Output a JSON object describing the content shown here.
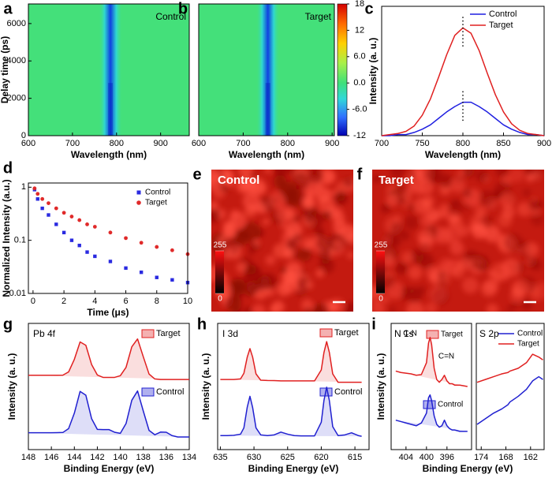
{
  "chart_data": [
    {
      "type": "heatmap",
      "panel_label": "a",
      "title": "Control",
      "xlabel": "Wavelength (nm)",
      "ylabel": "Delay time (ps)",
      "xlim": [
        600,
        965
      ],
      "xticks": [
        600,
        700,
        800,
        900
      ],
      "ylim": [
        0,
        7050
      ],
      "yticks": [
        0,
        2000,
        4000,
        6000
      ]
    },
    {
      "type": "heatmap",
      "panel_label": "b",
      "title": "Target",
      "xlabel": "Wavelength (nm)",
      "xlim": [
        600,
        905
      ],
      "xticks": [
        600,
        700,
        800,
        900
      ],
      "ylim": [
        0,
        7050
      ],
      "colorbar": {
        "lim": [
          -12,
          18
        ],
        "ticks": [
          18,
          12,
          {
            "value": 6,
            "label": "6.0"
          },
          {
            "value": 0,
            "label": "0.0"
          },
          {
            "value": -6,
            "label": "-6.0"
          },
          -12
        ]
      }
    },
    {
      "type": "line",
      "panel_label": "c",
      "xlabel": "Wavelength (nm)",
      "ylabel": "Intensity (a. u.)",
      "xlim": [
        700,
        900
      ],
      "xticks": [
        700,
        750,
        800,
        850,
        900
      ],
      "ylim": [
        0,
        1.2
      ],
      "x": [
        700,
        710,
        720,
        730,
        740,
        750,
        760,
        770,
        780,
        790,
        800,
        810,
        820,
        830,
        840,
        850,
        860,
        870,
        880,
        890,
        900
      ],
      "series": [
        {
          "name": "Control",
          "color": "#1f1fe0",
          "values": [
            0.0,
            0.0,
            0.01,
            0.01,
            0.03,
            0.06,
            0.1,
            0.16,
            0.22,
            0.27,
            0.31,
            0.31,
            0.27,
            0.22,
            0.16,
            0.1,
            0.06,
            0.03,
            0.01,
            0.01,
            0.0
          ]
        },
        {
          "name": "Target",
          "color": "#e02020",
          "values": [
            0.0,
            0.01,
            0.02,
            0.04,
            0.09,
            0.19,
            0.34,
            0.54,
            0.75,
            0.93,
            1.0,
            0.95,
            0.79,
            0.58,
            0.38,
            0.22,
            0.11,
            0.05,
            0.02,
            0.01,
            0.0
          ]
        }
      ]
    },
    {
      "type": "scatter",
      "panel_label": "d",
      "xlabel": "Time (μs)",
      "ylabel": "Normalized Intensity (a.u.)",
      "log_y": true,
      "xlim": [
        -0.3,
        10
      ],
      "xticks": [
        0,
        2,
        4,
        6,
        8,
        10
      ],
      "ylim": [
        0.01,
        1.2
      ],
      "yticks": [
        0.01,
        0.1,
        1
      ],
      "x": [
        0.1,
        0.3,
        0.6,
        1,
        1.5,
        2,
        2.5,
        3,
        3.5,
        4,
        5,
        6,
        7,
        8,
        9,
        10
      ],
      "series": [
        {
          "name": "Control",
          "color": "#2a2ae0",
          "marker": "square",
          "values": [
            0.9,
            0.6,
            0.4,
            0.3,
            0.2,
            0.14,
            0.1,
            0.08,
            0.06,
            0.05,
            0.04,
            0.03,
            0.025,
            0.02,
            0.018,
            0.016
          ]
        },
        {
          "name": "Target",
          "color": "#e02a2a",
          "marker": "circle",
          "values": [
            0.95,
            0.75,
            0.6,
            0.5,
            0.4,
            0.33,
            0.28,
            0.24,
            0.2,
            0.18,
            0.14,
            0.11,
            0.09,
            0.075,
            0.065,
            0.055
          ]
        }
      ]
    },
    {
      "type": "image",
      "panel_label": "e",
      "title": "Control",
      "colorbar": {
        "lim": [
          0,
          255
        ],
        "ticks": [
          255,
          0
        ]
      }
    },
    {
      "type": "image",
      "panel_label": "f",
      "title": "Target",
      "colorbar": {
        "lim": [
          0,
          255
        ],
        "ticks": [
          255,
          0
        ]
      }
    },
    {
      "type": "line",
      "panel_label": "g",
      "title": "Pb 4f",
      "xlabel": "Binding Energy (eV)",
      "ylabel": "Intensity (a. u.)",
      "xlim": [
        148,
        134
      ],
      "xticks": [
        148,
        146,
        144,
        142,
        140,
        138,
        136,
        134
      ],
      "ylim": [
        0,
        9
      ],
      "x": [
        148,
        147.5,
        147,
        146.5,
        146,
        145.5,
        145,
        144.5,
        144,
        143.5,
        143,
        142.5,
        142,
        141.5,
        141,
        140.5,
        140,
        139.5,
        139,
        138.5,
        138,
        137.5,
        137,
        136.5,
        136,
        135.5,
        135,
        134.5,
        134
      ],
      "series": [
        {
          "name": "Target",
          "color": "#e02020",
          "values": [
            5.3,
            5.3,
            5.3,
            5.3,
            5.3,
            5.3,
            5.31,
            5.54,
            6.44,
            7.68,
            7.44,
            6.07,
            5.32,
            5.15,
            5.15,
            5.15,
            5.27,
            5.87,
            7.33,
            7.89,
            6.62,
            5.39,
            5.04,
            5.0,
            5.0,
            5.0,
            5.0,
            5.0,
            5.0
          ]
        },
        {
          "name": "Control",
          "color": "#2020d0",
          "values": [
            1.2,
            1.2,
            1.2,
            1.2,
            1.2,
            1.21,
            1.22,
            1.5,
            2.6,
            4.15,
            3.88,
            2.21,
            1.44,
            1.43,
            1.43,
            1.24,
            1.16,
            1.86,
            3.52,
            4.18,
            2.75,
            1.37,
            1.06,
            1.25,
            1.24,
            1.0,
            0.9,
            0.9,
            0.9
          ]
        }
      ]
    },
    {
      "type": "line",
      "panel_label": "h",
      "title": "I 3d",
      "xlabel": "Binding Energy (eV)",
      "ylabel": "Intensity (a. u.)",
      "xlim": [
        635.4,
        612.9
      ],
      "xticks": [
        635,
        630,
        625,
        620,
        615
      ],
      "ylim": [
        0,
        9
      ],
      "x": [
        635,
        634,
        633,
        632,
        631.5,
        631,
        630.6,
        630.2,
        629.7,
        629,
        628,
        627,
        626,
        625,
        624,
        623,
        622,
        621,
        620,
        619.6,
        619.2,
        618.8,
        618.3,
        617.5,
        616.5,
        615.5,
        614.5,
        614
      ],
      "series": [
        {
          "name": "Target",
          "color": "#e02020",
          "values": [
            5.0,
            5.0,
            5.0,
            5.04,
            5.44,
            6.6,
            7.2,
            6.6,
            5.4,
            4.95,
            4.93,
            4.92,
            4.9,
            4.9,
            4.9,
            4.9,
            4.9,
            4.9,
            5.68,
            6.93,
            7.7,
            6.93,
            5.4,
            4.8,
            4.8,
            4.8,
            4.8,
            4.8
          ]
        },
        {
          "name": "Control",
          "color": "#2020d0",
          "values": [
            1.0,
            1.0,
            1.02,
            1.1,
            1.55,
            3.03,
            3.8,
            3.0,
            1.55,
            1.05,
            1.0,
            1.05,
            1.25,
            1.1,
            1.0,
            0.98,
            0.98,
            0.98,
            1.95,
            3.51,
            4.45,
            3.5,
            1.64,
            1.0,
            1.05,
            1.2,
            1.0,
            0.95
          ]
        }
      ]
    },
    {
      "type": "line",
      "panel_label": "i",
      "title": "N 1s",
      "xlabel": "Binding Energy (eV)",
      "ylabel": "Intensity (a. u.)",
      "annotations": [
        "C-N",
        "C=N"
      ],
      "xlim": [
        406.9,
        391.2
      ],
      "xticks": [
        404,
        400,
        396
      ],
      "ylim": [
        0,
        9
      ],
      "x": [
        406,
        405,
        404,
        403,
        402,
        401,
        400,
        399.6,
        399.3,
        399,
        398.5,
        398,
        397.5,
        397,
        396.5,
        396,
        395.5,
        395,
        394.5,
        393.5,
        392
      ],
      "series": [
        {
          "name": "Target",
          "color": "#e02020",
          "values": [
            5.6,
            5.5,
            5.45,
            5.4,
            5.3,
            5.35,
            6.2,
            7.6,
            8.0,
            7.5,
            5.8,
            5.0,
            4.8,
            5.0,
            5.3,
            4.9,
            4.7,
            4.7,
            4.6,
            4.6,
            4.5
          ]
        },
        {
          "name": "Control",
          "color": "#2020d0",
          "values": [
            2.1,
            2.0,
            1.9,
            1.8,
            1.7,
            1.9,
            2.6,
            3.7,
            3.9,
            3.5,
            2.4,
            1.8,
            1.6,
            1.7,
            2.1,
            1.7,
            1.5,
            1.4,
            1.4,
            1.3,
            1.3
          ]
        }
      ]
    },
    {
      "type": "line",
      "title": "S 2p",
      "xlim": [
        175.2,
        158.7
      ],
      "xticks": [
        174,
        168,
        162
      ],
      "ylim": [
        0,
        9
      ],
      "x": [
        175,
        173,
        171,
        169,
        167.5,
        167,
        165,
        163,
        161.5,
        160,
        159
      ],
      "series": [
        {
          "name": "Control",
          "color": "#2020d0",
          "values": [
            1.8,
            2.2,
            2.6,
            2.9,
            3.2,
            3.4,
            3.8,
            4.3,
            4.9,
            5.2,
            5.0
          ]
        },
        {
          "name": "Target",
          "color": "#e02020",
          "values": [
            4.8,
            5.0,
            5.2,
            5.4,
            5.5,
            5.6,
            5.8,
            6.2,
            6.8,
            6.6,
            6.4
          ]
        }
      ]
    }
  ]
}
